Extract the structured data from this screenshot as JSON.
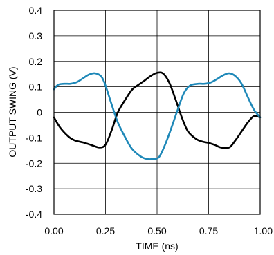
{
  "chart_data": {
    "type": "line",
    "xlabel": "TIME (ns)",
    "ylabel": "OUTPUT SWING (V)",
    "xlim": [
      0,
      1
    ],
    "ylim": [
      -0.4,
      0.4
    ],
    "grid": true,
    "legend": "none",
    "x_ticks": [
      "0.00",
      "0.25",
      "0.50",
      "0.75",
      "1.00"
    ],
    "y_ticks": [
      "0.4",
      "0.3",
      "0.2",
      "0.1",
      "0",
      "-0.1",
      "-0.2",
      "-0.3",
      "-0.4"
    ],
    "series": [
      {
        "color": "#000000",
        "x": [
          0.0,
          0.03,
          0.07,
          0.1,
          0.14,
          0.18,
          0.22,
          0.25,
          0.28,
          0.31,
          0.35,
          0.38,
          0.41,
          0.44,
          0.47,
          0.5,
          0.53,
          0.56,
          0.59,
          0.62,
          0.65,
          0.69,
          0.72,
          0.75,
          0.78,
          0.81,
          0.85,
          0.88,
          0.91,
          0.94,
          0.97,
          1.0
        ],
        "y": [
          -0.02,
          -0.06,
          -0.095,
          -0.11,
          -0.118,
          -0.128,
          -0.138,
          -0.127,
          -0.07,
          0.0,
          0.055,
          0.09,
          0.108,
          0.125,
          0.143,
          0.155,
          0.152,
          0.115,
          0.05,
          -0.02,
          -0.075,
          -0.105,
          -0.115,
          -0.12,
          -0.128,
          -0.138,
          -0.138,
          -0.11,
          -0.075,
          -0.04,
          -0.015,
          -0.02
        ]
      },
      {
        "color": "#1e88b8",
        "x": [
          0.0,
          0.02,
          0.05,
          0.08,
          0.11,
          0.14,
          0.17,
          0.2,
          0.23,
          0.25,
          0.28,
          0.31,
          0.35,
          0.38,
          0.42,
          0.45,
          0.48,
          0.51,
          0.54,
          0.57,
          0.6,
          0.63,
          0.66,
          0.7,
          0.73,
          0.76,
          0.79,
          0.82,
          0.85,
          0.88,
          0.91,
          0.94,
          0.97,
          1.0
        ],
        "y": [
          0.09,
          0.108,
          0.112,
          0.112,
          0.118,
          0.133,
          0.148,
          0.153,
          0.14,
          0.105,
          0.03,
          -0.04,
          -0.105,
          -0.145,
          -0.173,
          -0.183,
          -0.183,
          -0.175,
          -0.125,
          -0.06,
          0.01,
          0.075,
          0.105,
          0.112,
          0.112,
          0.117,
          0.13,
          0.145,
          0.153,
          0.142,
          0.112,
          0.06,
          0.01,
          -0.02
        ]
      }
    ]
  }
}
